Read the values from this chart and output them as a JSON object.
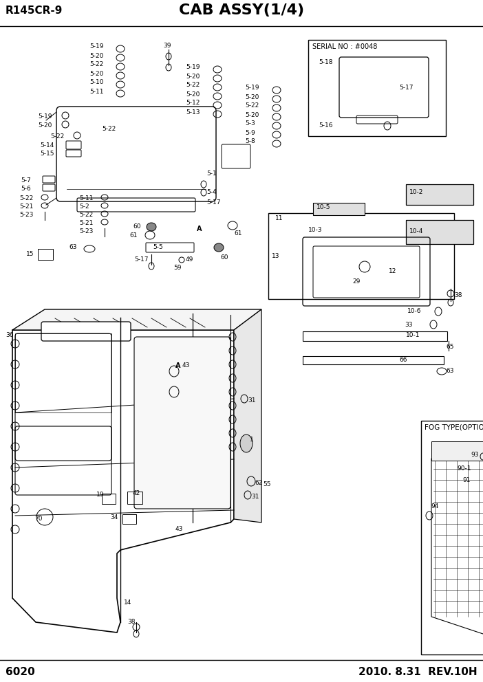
{
  "title": "CAB ASSY(1/4)",
  "model": "R145CR-9",
  "page": "6020",
  "date": "2010. 8.31  REV.10H",
  "serial_label": "SERIAL NO : #0048",
  "fog_label": "FOG TYPE(OPTION)",
  "background": "#ffffff",
  "line_color": "#000000"
}
